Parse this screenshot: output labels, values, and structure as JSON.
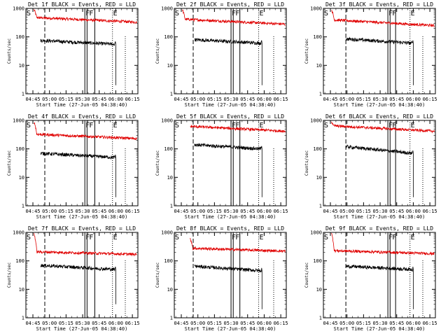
{
  "chart_data": [
    {
      "type": "line",
      "title": "Det 1f BLACK = Events, RED = LLD",
      "xlabel": "Start Time (27-Jun-05 04:38:40)",
      "ylabel": "Counts/sec",
      "yscale": "log",
      "ylim": [
        1,
        1000
      ],
      "yticks": [
        "1",
        "10",
        "100",
        "1000"
      ],
      "xlim": [
        "04:38:40",
        "06:20:00"
      ],
      "xticks": [
        "04:45",
        "05:00",
        "05:15",
        "05:30",
        "05:45",
        "06:00",
        "06:15"
      ],
      "markers": {
        "S": "04:40",
        "F1": "05:32",
        "F2": "05:34",
        "F3": "05:41",
        "E": "05:57"
      },
      "series": [
        {
          "name": "BLACK",
          "color": "#000000",
          "description": "Events"
        },
        {
          "name": "RED",
          "color": "#e00000",
          "description": "LLD"
        }
      ],
      "events": {
        "start": "04:52",
        "end": "06:00",
        "level_start": 75,
        "level_end": 55,
        "drop_to": 2
      },
      "lld": {
        "start": "04:46",
        "end": "06:19",
        "peak": 900,
        "level_start": 480,
        "level_end": 330
      }
    },
    {
      "type": "line",
      "title": "Det 2f BLACK = Events, RED = LLD",
      "xlabel": "Start Time (27-Jun-05 04:38:40)",
      "ylabel": "Counts/sec",
      "yscale": "log",
      "ylim": [
        1,
        1000
      ],
      "yticks": [
        "1",
        "10",
        "100",
        "1000"
      ],
      "xlim": [
        "04:38:40",
        "06:20:00"
      ],
      "xticks": [
        "04:45",
        "05:00",
        "05:15",
        "05:30",
        "05:45",
        "06:00",
        "06:15"
      ],
      "markers": {
        "S": "04:40",
        "F1": "05:30",
        "F2": "05:32",
        "F3": "05:38",
        "E": "05:55"
      },
      "series": [
        {
          "name": "BLACK",
          "color": "#000000",
          "description": "Events"
        },
        {
          "name": "RED",
          "color": "#e00000",
          "description": "LLD"
        }
      ],
      "events": {
        "start": "04:57",
        "end": "05:58",
        "level_start": 80,
        "level_end": 60,
        "drop_to": 2
      },
      "lld": {
        "start": "04:46",
        "end": "06:19",
        "peak": 900,
        "level_start": 420,
        "level_end": 280
      }
    },
    {
      "type": "line",
      "title": "Det 3f BLACK = Events, RED = LLD",
      "xlabel": "Start Time (27-Jun-05 04:38:40)",
      "ylabel": "Counts/sec",
      "yscale": "log",
      "ylim": [
        1,
        1000
      ],
      "yticks": [
        "1",
        "10",
        "100",
        "1000"
      ],
      "xlim": [
        "04:38:40",
        "06:20:00"
      ],
      "xticks": [
        "04:45",
        "05:00",
        "05:15",
        "05:30",
        "05:45",
        "06:00",
        "06:15"
      ],
      "markers": {
        "S": "04:40",
        "F1": "05:37",
        "F2": "05:39",
        "F3": "05:44",
        "E": "05:57"
      },
      "series": [
        {
          "name": "BLACK",
          "color": "#000000",
          "description": "Events"
        },
        {
          "name": "RED",
          "color": "#e00000",
          "description": "LLD"
        }
      ],
      "events": {
        "start": "04:59",
        "end": "06:00",
        "level_start": 85,
        "level_end": 60,
        "drop_to": 2
      },
      "lld": {
        "start": "04:46",
        "end": "06:19",
        "peak": 900,
        "level_start": 400,
        "level_end": 250
      }
    },
    {
      "type": "line",
      "title": "Det 4f BLACK = Events, RED = LLD",
      "xlabel": "Start Time (27-Jun-05 04:38:40)",
      "ylabel": "Counts/sec",
      "yscale": "log",
      "ylim": [
        1,
        1000
      ],
      "yticks": [
        "1",
        "10",
        "100",
        "1000"
      ],
      "xlim": [
        "04:38:40",
        "06:20:00"
      ],
      "xticks": [
        "04:45",
        "05:00",
        "05:15",
        "05:30",
        "05:45",
        "06:00",
        "06:15"
      ],
      "markers": {
        "S": "04:40",
        "F1": "05:32",
        "F2": "05:34",
        "F3": "05:41",
        "E": "05:57"
      },
      "series": [
        {
          "name": "BLACK",
          "color": "#000000",
          "description": "Events"
        },
        {
          "name": "RED",
          "color": "#e00000",
          "description": "LLD"
        }
      ],
      "events": {
        "start": "04:52",
        "end": "06:00",
        "level_start": 70,
        "level_end": 50,
        "drop_to": 2
      },
      "lld": {
        "start": "04:46",
        "end": "06:19",
        "peak": 900,
        "level_start": 330,
        "level_end": 230
      }
    },
    {
      "type": "line",
      "title": "Det 5f BLACK = Events, RED = LLD",
      "xlabel": "Start Time (27-Jun-05 04:38:40)",
      "ylabel": "Counts/sec",
      "yscale": "log",
      "ylim": [
        1,
        1000
      ],
      "yticks": [
        "1",
        "10",
        "100",
        "1000"
      ],
      "xlim": [
        "04:38:40",
        "06:20:00"
      ],
      "xticks": [
        "04:45",
        "05:00",
        "05:15",
        "05:30",
        "05:45",
        "06:00",
        "06:15"
      ],
      "markers": {
        "S": "04:40",
        "F1": "05:30",
        "F2": "05:32",
        "F3": "05:38",
        "E": "05:55"
      },
      "series": [
        {
          "name": "BLACK",
          "color": "#000000",
          "description": "Events"
        },
        {
          "name": "RED",
          "color": "#e00000",
          "description": "LLD"
        }
      ],
      "events": {
        "start": "04:57",
        "end": "05:58",
        "level_start": 140,
        "level_end": 100,
        "drop_to": 2
      },
      "lld": {
        "start": "04:53",
        "end": "06:19",
        "peak": 600,
        "level_start": 620,
        "level_end": 420
      }
    },
    {
      "type": "line",
      "title": "Det 6f BLACK = Events, RED = LLD",
      "xlabel": "Start Time (27-Jun-05 04:38:40)",
      "ylabel": "Counts/sec",
      "yscale": "log",
      "ylim": [
        1,
        1000
      ],
      "yticks": [
        "1",
        "10",
        "100",
        "1000"
      ],
      "xlim": [
        "04:38:40",
        "06:20:00"
      ],
      "xticks": [
        "04:45",
        "05:00",
        "05:15",
        "05:30",
        "05:45",
        "06:00",
        "06:15"
      ],
      "markers": {
        "S": "04:40",
        "F1": "05:37",
        "F2": "05:39",
        "F3": "05:44",
        "E": "05:57"
      },
      "series": [
        {
          "name": "BLACK",
          "color": "#000000",
          "description": "Events"
        },
        {
          "name": "RED",
          "color": "#e00000",
          "description": "LLD"
        }
      ],
      "events": {
        "start": "04:59",
        "end": "06:00",
        "level_start": 120,
        "level_end": 70,
        "drop_to": 2
      },
      "lld": {
        "start": "04:46",
        "end": "06:19",
        "peak": 900,
        "level_start": 650,
        "level_end": 420
      }
    },
    {
      "type": "line",
      "title": "Det 7f BLACK = Events, RED = LLD",
      "xlabel": "Start Time (27-Jun-05 04:38:40)",
      "ylabel": "Counts/sec",
      "yscale": "log",
      "ylim": [
        1,
        1000
      ],
      "yticks": [
        "1",
        "10",
        "100",
        "1000"
      ],
      "xlim": [
        "04:38:40",
        "06:20:00"
      ],
      "xticks": [
        "04:45",
        "05:00",
        "05:15",
        "05:30",
        "05:45",
        "06:00",
        "06:15"
      ],
      "markers": {
        "S": "04:40",
        "F1": "05:32",
        "F2": "05:34",
        "F3": "05:41",
        "E": "05:57"
      },
      "series": [
        {
          "name": "BLACK",
          "color": "#000000",
          "description": "Events"
        },
        {
          "name": "RED",
          "color": "#e00000",
          "description": "LLD"
        }
      ],
      "events": {
        "start": "04:52",
        "end": "06:00",
        "level_start": 70,
        "level_end": 50,
        "drop_to": 3
      },
      "lld": {
        "start": "04:46",
        "end": "06:19",
        "peak": 900,
        "level_start": 210,
        "level_end": 170
      }
    },
    {
      "type": "line",
      "title": "Det 8f BLACK = Events, RED = LLD",
      "xlabel": "Start Time (27-Jun-05 04:38:40)",
      "ylabel": "Counts/sec",
      "yscale": "log",
      "ylim": [
        1,
        1000
      ],
      "yticks": [
        "1",
        "10",
        "100",
        "1000"
      ],
      "xlim": [
        "04:38:40",
        "06:20:00"
      ],
      "xticks": [
        "04:45",
        "05:00",
        "05:15",
        "05:30",
        "05:45",
        "06:00",
        "06:15"
      ],
      "markers": {
        "S": "04:40",
        "F1": "05:30",
        "F2": "05:32",
        "F3": "05:38",
        "E": "05:55"
      },
      "series": [
        {
          "name": "BLACK",
          "color": "#000000",
          "description": "Events"
        },
        {
          "name": "RED",
          "color": "#e00000",
          "description": "LLD"
        }
      ],
      "events": {
        "start": "04:57",
        "end": "05:58",
        "level_start": 65,
        "level_end": 45,
        "drop_to": 2
      },
      "lld": {
        "start": "04:53",
        "end": "06:19",
        "peak": 600,
        "level_start": 280,
        "level_end": 220
      }
    },
    {
      "type": "line",
      "title": "Det 9f BLACK = Events, RED = LLD",
      "xlabel": "Start Time (27-Jun-05 04:38:40)",
      "ylabel": "Counts/sec",
      "yscale": "log",
      "ylim": [
        1,
        1000
      ],
      "yticks": [
        "1",
        "10",
        "100",
        "1000"
      ],
      "xlim": [
        "04:38:40",
        "06:20:00"
      ],
      "xticks": [
        "04:45",
        "05:00",
        "05:15",
        "05:30",
        "05:45",
        "06:00",
        "06:15"
      ],
      "markers": {
        "S": "04:40",
        "F1": "05:37",
        "F2": "05:39",
        "F3": "05:44",
        "E": "05:57"
      },
      "series": [
        {
          "name": "BLACK",
          "color": "#000000",
          "description": "Events"
        },
        {
          "name": "RED",
          "color": "#e00000",
          "description": "LLD"
        }
      ],
      "events": {
        "start": "04:59",
        "end": "06:00",
        "level_start": 65,
        "level_end": 50,
        "drop_to": 2
      },
      "lld": {
        "start": "04:46",
        "end": "06:19",
        "peak": 900,
        "level_start": 230,
        "level_end": 180
      }
    }
  ]
}
